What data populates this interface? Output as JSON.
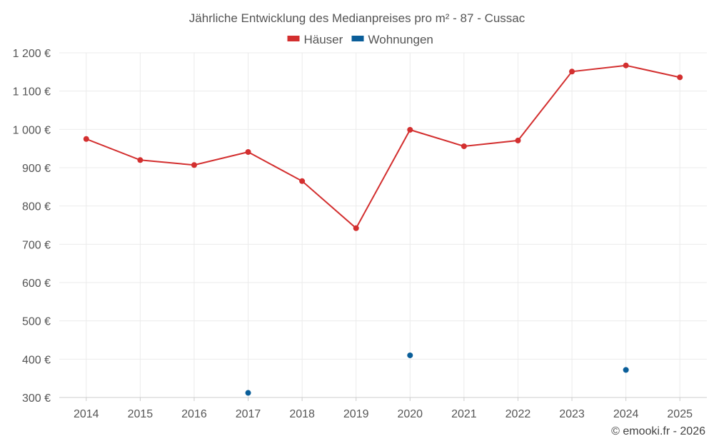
{
  "chart_data": {
    "type": "line",
    "title": "Jährliche Entwicklung des Medianpreises pro m² - 87 - Cussac",
    "categories": [
      "2014",
      "2015",
      "2016",
      "2017",
      "2018",
      "2019",
      "2020",
      "2021",
      "2022",
      "2023",
      "2024",
      "2025"
    ],
    "series": [
      {
        "name": "Häuser",
        "color": "#d32f2f",
        "values": [
          975,
          920,
          907,
          941,
          865,
          742,
          999,
          956,
          971,
          1151,
          1167,
          1136
        ]
      },
      {
        "name": "Wohnungen",
        "color": "#0a5e99",
        "values": [
          null,
          null,
          null,
          312,
          null,
          null,
          410,
          null,
          null,
          null,
          372,
          null
        ]
      }
    ],
    "ylim": [
      300,
      1200
    ],
    "yticks": [
      300,
      400,
      500,
      600,
      700,
      800,
      900,
      1000,
      1100,
      1200
    ],
    "ytick_labels": [
      "300 €",
      "400 €",
      "500 €",
      "600 €",
      "700 €",
      "800 €",
      "900 €",
      "1 000 €",
      "1 100 €",
      "1 200 €"
    ],
    "xlabel": "",
    "ylabel": "",
    "grid": true,
    "legend_position": "top-center"
  },
  "credit": "© emooki.fr - 2026"
}
